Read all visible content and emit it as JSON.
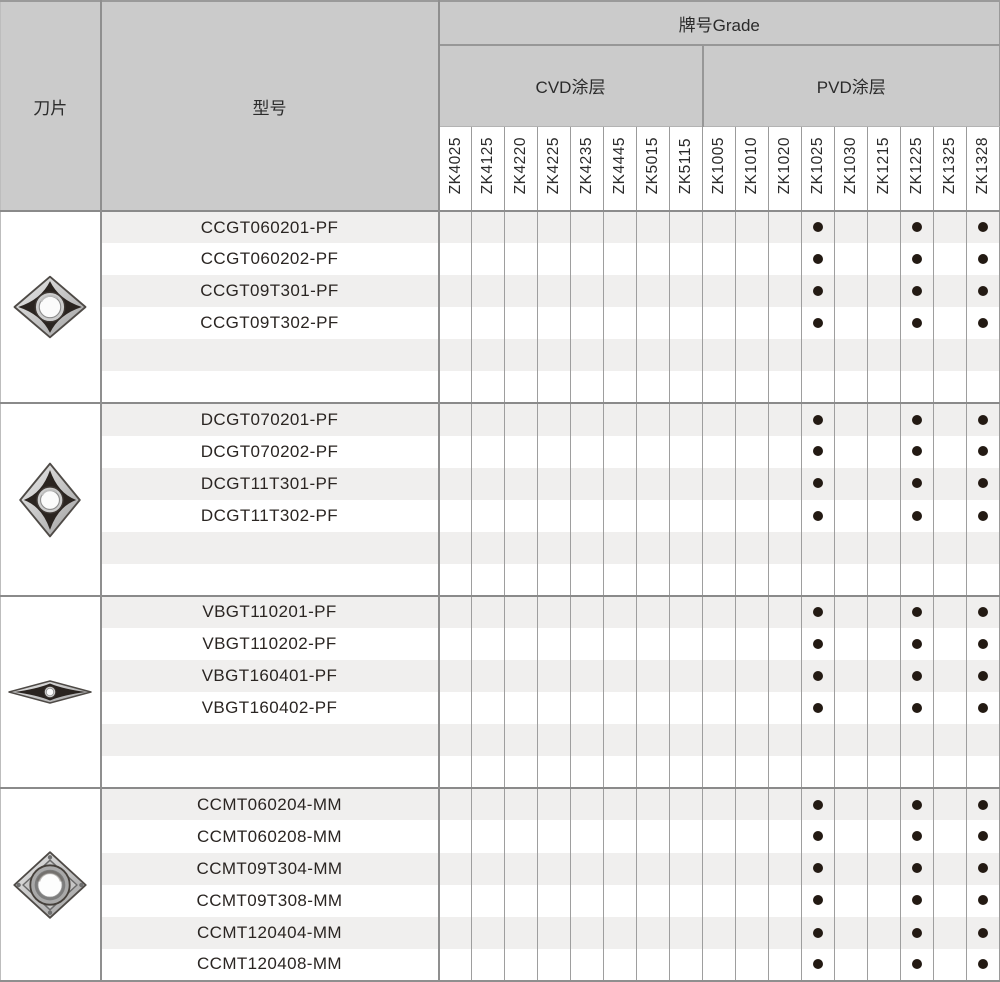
{
  "table": {
    "col1_header": "刀片",
    "col2_header": "型号",
    "grade_header": "牌号Grade",
    "cvd_header": "CVD涂层",
    "pvd_header": "PVD涂层",
    "cvd_columns": [
      "ZK4025",
      "ZK4125",
      "ZK4220",
      "ZK4225",
      "ZK4235",
      "ZK4445",
      "ZK5015",
      "ZK5115"
    ],
    "pvd_columns": [
      "ZK1005",
      "ZK1010",
      "ZK1020",
      "ZK1025",
      "ZK1030",
      "ZK1215",
      "ZK1225",
      "ZK1325",
      "ZK1328"
    ],
    "sections": [
      {
        "insert_icon": "ccgt-insert-icon",
        "empty_rows": 2,
        "rows": [
          {
            "model": "CCGT060201-PF",
            "grades": [
              "ZK1025",
              "ZK1225",
              "ZK1328"
            ]
          },
          {
            "model": "CCGT060202-PF",
            "grades": [
              "ZK1025",
              "ZK1225",
              "ZK1328"
            ]
          },
          {
            "model": "CCGT09T301-PF",
            "grades": [
              "ZK1025",
              "ZK1225",
              "ZK1328"
            ]
          },
          {
            "model": "CCGT09T302-PF",
            "grades": [
              "ZK1025",
              "ZK1225",
              "ZK1328"
            ]
          }
        ]
      },
      {
        "insert_icon": "dcgt-insert-icon",
        "empty_rows": 2,
        "rows": [
          {
            "model": "DCGT070201-PF",
            "grades": [
              "ZK1025",
              "ZK1225",
              "ZK1328"
            ]
          },
          {
            "model": "DCGT070202-PF",
            "grades": [
              "ZK1025",
              "ZK1225",
              "ZK1328"
            ]
          },
          {
            "model": "DCGT11T301-PF",
            "grades": [
              "ZK1025",
              "ZK1225",
              "ZK1328"
            ]
          },
          {
            "model": "DCGT11T302-PF",
            "grades": [
              "ZK1025",
              "ZK1225",
              "ZK1328"
            ]
          }
        ]
      },
      {
        "insert_icon": "vbgt-insert-icon",
        "empty_rows": 2,
        "rows": [
          {
            "model": "VBGT110201-PF",
            "grades": [
              "ZK1025",
              "ZK1225",
              "ZK1328"
            ]
          },
          {
            "model": "VBGT110202-PF",
            "grades": [
              "ZK1025",
              "ZK1225",
              "ZK1328"
            ]
          },
          {
            "model": "VBGT160401-PF",
            "grades": [
              "ZK1025",
              "ZK1225",
              "ZK1328"
            ]
          },
          {
            "model": "VBGT160402-PF",
            "grades": [
              "ZK1025",
              "ZK1225",
              "ZK1328"
            ]
          }
        ]
      },
      {
        "insert_icon": "ccmt-insert-icon",
        "empty_rows": 0,
        "rows": [
          {
            "model": "CCMT060204-MM",
            "grades": [
              "ZK1025",
              "ZK1225",
              "ZK1328"
            ]
          },
          {
            "model": "CCMT060208-MM",
            "grades": [
              "ZK1025",
              "ZK1225",
              "ZK1328"
            ]
          },
          {
            "model": "CCMT09T304-MM",
            "grades": [
              "ZK1025",
              "ZK1225",
              "ZK1328"
            ]
          },
          {
            "model": "CCMT09T308-MM",
            "grades": [
              "ZK1025",
              "ZK1225",
              "ZK1328"
            ]
          },
          {
            "model": "CCMT120404-MM",
            "grades": [
              "ZK1025",
              "ZK1225",
              "ZK1328"
            ]
          },
          {
            "model": "CCMT120408-MM",
            "grades": [
              "ZK1025",
              "ZK1225",
              "ZK1328"
            ]
          }
        ]
      }
    ]
  },
  "colors": {
    "header_bg": "#cbcbcb",
    "row_stripe": "#f0efee",
    "border_major": "#8a8a8a",
    "border_minor": "#9e9e9e",
    "dot": "#231a13",
    "text": "#2a2522"
  }
}
